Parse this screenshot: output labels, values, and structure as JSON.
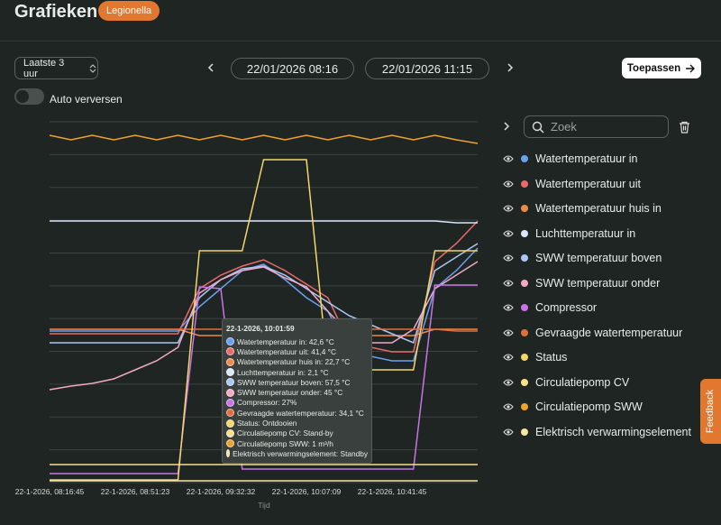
{
  "header": {
    "title": "Grafieken",
    "badge": "Legionella"
  },
  "controls": {
    "range": "Laatste 3 uur",
    "start": "22/01/2026 08:16",
    "end": "22/01/2026 11:15",
    "apply": "Toepassen",
    "auto_refresh": "Auto verversen"
  },
  "search_placeholder": "Zoek",
  "feedback": "Feedback",
  "chart_data": {
    "type": "line",
    "x_label": "Tijd",
    "categories": [
      "22-1-2026, 08:16:45",
      null,
      null,
      null,
      "22-1-2026, 08:51:23",
      null,
      null,
      null,
      "22-1-2026, 09:32:32",
      null,
      null,
      null,
      "22-1-2026, 10:07:09",
      null,
      null,
      null,
      "22-1-2026, 10:41:45",
      null,
      null,
      null,
      null
    ],
    "ylim": [
      0,
      100
    ],
    "series": [
      {
        "name": "Watertemperatuur in",
        "color": "#6b9ff0",
        "values": [
          42,
          42,
          42,
          42,
          42,
          42,
          42,
          48.75,
          53.75,
          58.75,
          60.5,
          56.25,
          51.25,
          47.5,
          36.25,
          35,
          33.75,
          33.75,
          53.75,
          58.75,
          65
        ]
      },
      {
        "name": "Watertemperatuur uit",
        "color": "#e86a6a",
        "values": [
          41.25,
          41.25,
          41.25,
          41.25,
          41.25,
          41.25,
          41.25,
          53.75,
          57.5,
          60,
          61.75,
          58.75,
          55,
          51.25,
          38.75,
          37.5,
          36.25,
          36.25,
          61.25,
          66.25,
          72.5
        ]
      },
      {
        "name": "Watertemperatuur huis in",
        "color": "#f08a4b",
        "values": [
          42.5,
          42.5,
          42.5,
          42.5,
          42.5,
          42.5,
          42.5,
          40.75,
          40.75,
          40.75,
          40.75,
          40.75,
          40.75,
          40.75,
          40.75,
          40.75,
          40.75,
          40.75,
          42.5,
          42.5,
          42.5
        ]
      },
      {
        "name": "Luchttemperatuur in",
        "color": "#d9e6fb",
        "values": [
          72.5,
          72.5,
          72.5,
          72.5,
          72.5,
          72.5,
          72.5,
          72.5,
          72.5,
          72.5,
          72.5,
          72.5,
          72.5,
          72.5,
          72.5,
          72.5,
          72.5,
          72.5,
          72.5,
          72,
          72
        ]
      },
      {
        "name": "SWW temperatuur boven",
        "color": "#a9c7f7",
        "values": [
          38.75,
          38.75,
          38.75,
          38.75,
          38.75,
          38.75,
          38.75,
          51.25,
          56.25,
          59.25,
          60,
          57.5,
          53.75,
          50,
          46.25,
          43.75,
          41.25,
          38.75,
          58.75,
          62.5,
          66.25
        ]
      },
      {
        "name": "SWW temperatuur onder",
        "color": "#f2a9c4",
        "values": [
          25.75,
          26.75,
          27.5,
          28.75,
          31.25,
          33.75,
          37.5,
          52.5,
          56.25,
          58.75,
          59.75,
          56.75,
          54.25,
          47.5,
          41.25,
          38.75,
          38.75,
          42.5,
          53.75,
          57.5,
          61.25
        ]
      },
      {
        "name": "Compressor",
        "color": "#c874e6",
        "values": [
          2.5,
          2.5,
          2.5,
          2.5,
          2.5,
          2.5,
          2.5,
          54.25,
          53.75,
          3.75,
          3.75,
          3.75,
          3.75,
          3.75,
          3.75,
          3.75,
          3.75,
          3.75,
          54.75,
          54.75,
          54.75
        ]
      },
      {
        "name": "Gevraagde watertemperatuur",
        "color": "#e0703a",
        "values": [
          42.5,
          42.5,
          42.5,
          42.5,
          42.5,
          42.5,
          42.5,
          42.5,
          42.5,
          42.5,
          42.5,
          42.5,
          42.5,
          42.5,
          42.5,
          42.5,
          42.5,
          42.5,
          42.5,
          42,
          42
        ]
      },
      {
        "name": "Status",
        "color": "#f4d66b",
        "values": [
          0.75,
          0.75,
          0.75,
          0.75,
          0.75,
          0.75,
          0.75,
          64.25,
          64.25,
          64.25,
          89.5,
          89.5,
          89.5,
          31.25,
          31.25,
          31.25,
          31.25,
          31.25,
          64.25,
          64.25,
          64.25
        ]
      },
      {
        "name": "Circulatiepomp CV",
        "color": "#f6e08c",
        "values": [
          5,
          5,
          5,
          5,
          5,
          5,
          5,
          5,
          5,
          5,
          5,
          5,
          5,
          5,
          5,
          5,
          5,
          5,
          5,
          5,
          5
        ]
      },
      {
        "name": "Circulatiepomp SWW",
        "color": "#eea22e",
        "values": [
          96.25,
          95,
          96.25,
          95,
          96.25,
          95,
          96.25,
          95,
          96.25,
          95,
          96.25,
          95,
          96.25,
          95,
          96.25,
          95,
          96.25,
          95,
          96.25,
          95,
          94
        ]
      },
      {
        "name": "Elektrisch verwarmingselement",
        "color": "#f7e6a2",
        "values": [
          0.5,
          0.5,
          0.5,
          0.5,
          0.5,
          0.5,
          0.5,
          0.5,
          0.5,
          0.5,
          0.5,
          0.5,
          0.5,
          0.5,
          0.5,
          0.5,
          0.5,
          0.5,
          0.5,
          0.5,
          0.5
        ]
      }
    ],
    "tooltip": {
      "title": "22-1-2026, 10:01:59",
      "lines": [
        "Watertemperatuur in: 42,6 °C",
        "Watertemperatuur uit: 41,4 °C",
        "Watertemperatuur huis in: 22,7 °C",
        "Luchttemperatuur in: 2,1 °C",
        "SWW temperatuur boven: 57,5 °C",
        "SWW temperatuur onder: 45 °C",
        "Compressor: 27%",
        "Gevraagde watertemperatuur: 34,1 °C",
        "Status: Ontdooien",
        "Circulatiepomp CV: Stand-by",
        "Circulatiepomp SWW: 1 m³/h",
        "Elektrisch verwarmingselement: Standby"
      ]
    }
  }
}
